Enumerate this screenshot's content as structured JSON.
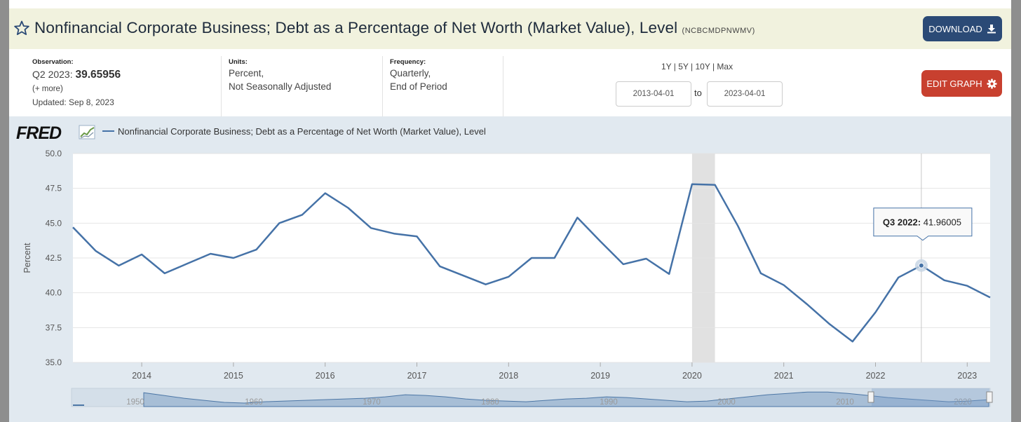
{
  "header": {
    "title": "Nonfinancial Corporate Business; Debt as a Percentage of Net Worth (Market Value), Level",
    "series_id": "(NCBCMDPNWMV)",
    "download_label": "DOWNLOAD",
    "edit_label": "EDIT GRAPH"
  },
  "observation": {
    "label": "Observation:",
    "period": "Q2 2023:",
    "value": "39.65956",
    "more": "(+ more)",
    "updated": "Updated: Sep 8, 2023"
  },
  "units": {
    "label": "Units:",
    "line1": "Percent,",
    "line2": "Not Seasonally Adjusted"
  },
  "frequency": {
    "label": "Frequency:",
    "line1": "Quarterly,",
    "line2": "End of Period"
  },
  "range": {
    "options": "1Y | 5Y | 10Y | Max",
    "start": "2013-04-01",
    "to": "to",
    "end": "2023-04-01"
  },
  "colors": {
    "series": "#4572a7",
    "recession": "#e1e1e1",
    "plot_bg": "#ffffff",
    "chart_bg": "#e1e9f0"
  },
  "chart_data": {
    "type": "line",
    "logo": "FRED",
    "legend": "Nonfinancial Corporate Business; Debt as a Percentage of Net Worth (Market Value), Level",
    "ylabel": "Percent",
    "ylim": [
      35.0,
      50.0
    ],
    "yticks": [
      "35.0",
      "37.5",
      "40.0",
      "42.5",
      "45.0",
      "47.5",
      "50.0"
    ],
    "xlim": [
      2013.25,
      2023.25
    ],
    "xticks": [
      "2014",
      "2015",
      "2016",
      "2017",
      "2018",
      "2019",
      "2020",
      "2021",
      "2022",
      "2023"
    ],
    "recession": [
      2020.0,
      2020.25
    ],
    "series": [
      {
        "name": "NCBCMDPNWMV",
        "x": [
          2013.25,
          2013.5,
          2013.75,
          2014.0,
          2014.25,
          2014.5,
          2014.75,
          2015.0,
          2015.25,
          2015.5,
          2015.75,
          2016.0,
          2016.25,
          2016.5,
          2016.75,
          2017.0,
          2017.25,
          2017.5,
          2017.75,
          2018.0,
          2018.25,
          2018.5,
          2018.75,
          2019.0,
          2019.25,
          2019.5,
          2019.75,
          2020.0,
          2020.25,
          2020.5,
          2020.75,
          2021.0,
          2021.25,
          2021.5,
          2021.75,
          2022.0,
          2022.25,
          2022.5,
          2022.75,
          2023.0,
          2023.25
        ],
        "values": [
          44.7,
          43.0,
          41.95,
          42.75,
          41.4,
          42.1,
          42.8,
          42.5,
          43.1,
          45.0,
          45.6,
          47.15,
          46.1,
          44.65,
          44.25,
          44.05,
          41.9,
          41.25,
          40.6,
          41.15,
          42.5,
          42.5,
          45.4,
          43.7,
          42.05,
          42.45,
          41.35,
          47.8,
          47.75,
          44.8,
          41.4,
          40.55,
          39.2,
          37.75,
          36.5,
          38.6,
          41.1,
          41.96005,
          40.9,
          40.5,
          39.65956
        ]
      }
    ],
    "tooltip": {
      "label": "Q3 2022:",
      "value": "41.96005",
      "x": 2022.5
    },
    "navigator_labels": [
      "1950",
      "1960",
      "1970",
      "1980",
      "1990",
      "2000",
      "2010",
      "2020"
    ]
  }
}
